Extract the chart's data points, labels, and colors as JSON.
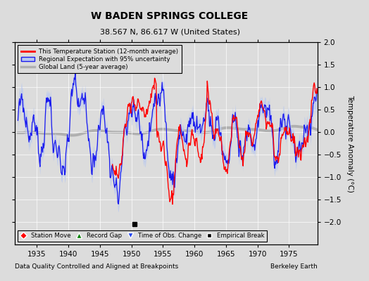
{
  "title": "W BADEN SPRINGS COLLEGE",
  "subtitle": "38.567 N, 86.617 W (United States)",
  "xlabel_note": "Data Quality Controlled and Aligned at Breakpoints",
  "xlabel_right": "Berkeley Earth",
  "ylabel": "Temperature Anomaly (°C)",
  "xlim": [
    1931.5,
    1979.5
  ],
  "ylim": [
    -2.5,
    2.0
  ],
  "yticks": [
    -2.0,
    -1.5,
    -1.0,
    -0.5,
    0.0,
    0.5,
    1.0,
    1.5,
    2.0
  ],
  "xticks": [
    1935,
    1940,
    1945,
    1950,
    1955,
    1960,
    1965,
    1970,
    1975
  ],
  "bg_color": "#dcdcdc",
  "plot_bg_color": "#dcdcdc",
  "legend_labels": [
    "This Temperature Station (12-month average)",
    "Regional Expectation with 95% uncertainty",
    "Global Land (5-year average)"
  ],
  "marker_labels": [
    "Station Move",
    "Record Gap",
    "Time of Obs. Change",
    "Empirical Break"
  ],
  "empirical_break_year": 1950.5,
  "red_start_year": 1947,
  "seed_regional": 99,
  "seed_station": 55
}
